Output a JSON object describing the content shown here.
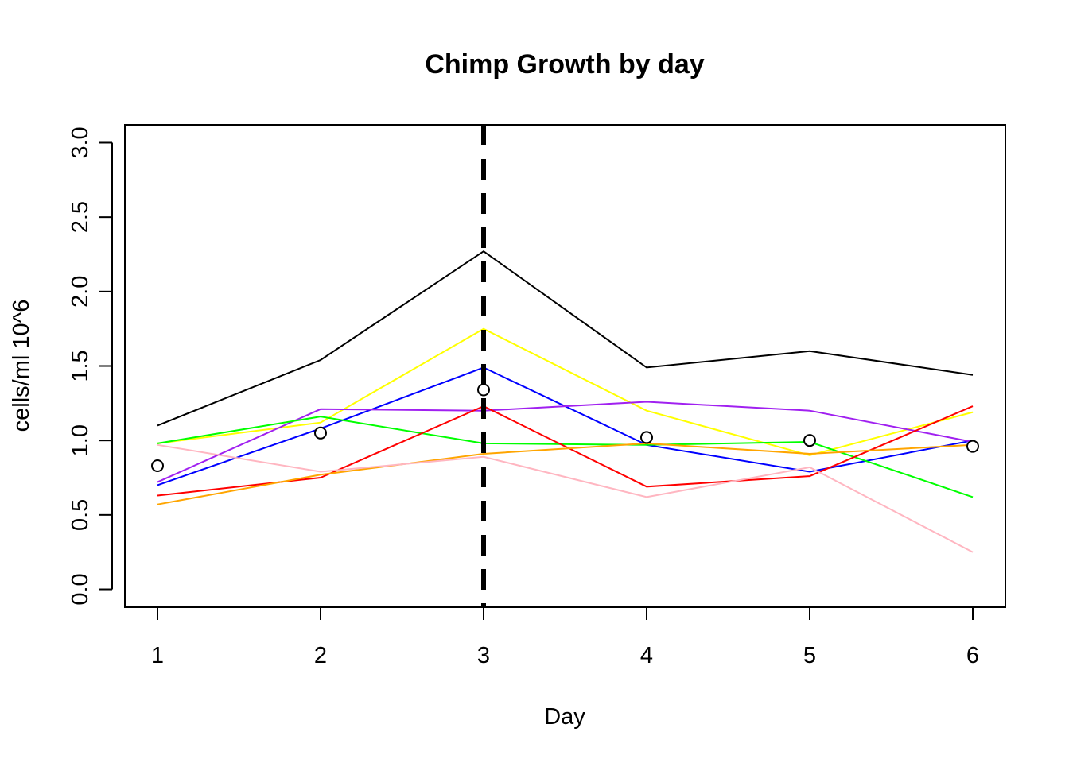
{
  "chart_data": {
    "type": "line",
    "title": "Chimp Growth by day",
    "xlabel": "Day",
    "ylabel": "cells/ml 10^6",
    "x": [
      1,
      2,
      3,
      4,
      5,
      6
    ],
    "xlim": [
      0.8,
      6.2
    ],
    "ylim": [
      -0.12,
      3.12
    ],
    "x_ticks": [
      "1",
      "2",
      "3",
      "4",
      "5",
      "6"
    ],
    "y_ticks": [
      "0.0",
      "0.5",
      "1.0",
      "1.5",
      "2.0",
      "2.5",
      "3.0"
    ],
    "grid": false,
    "legend": "none",
    "series": [
      {
        "color": "#000000",
        "values": [
          1.1,
          1.54,
          2.27,
          1.49,
          1.6,
          1.44
        ]
      },
      {
        "color": "#ffff00",
        "values": [
          0.98,
          1.12,
          1.75,
          1.2,
          0.9,
          1.19
        ]
      },
      {
        "color": "#0000ff",
        "values": [
          0.7,
          1.08,
          1.49,
          0.97,
          0.79,
          1.0
        ]
      },
      {
        "color": "#a020f0",
        "values": [
          0.72,
          1.21,
          1.2,
          1.26,
          1.2,
          0.99
        ]
      },
      {
        "color": "#00ff00",
        "values": [
          0.98,
          1.16,
          0.98,
          0.97,
          0.99,
          0.62
        ]
      },
      {
        "color": "#ff0000",
        "values": [
          0.63,
          0.75,
          1.23,
          0.69,
          0.76,
          1.23
        ]
      },
      {
        "color": "#ffa500",
        "values": [
          0.57,
          0.77,
          0.91,
          0.98,
          0.91,
          0.97
        ]
      },
      {
        "color": "#ffb6c1",
        "values": [
          0.97,
          0.79,
          0.89,
          0.62,
          0.82,
          0.25
        ]
      }
    ],
    "points": {
      "color": "#000000",
      "values": [
        0.83,
        1.05,
        1.34,
        1.02,
        1.0,
        0.96
      ]
    },
    "vline": {
      "x": 3,
      "color": "#000000",
      "style": "dashed"
    }
  }
}
